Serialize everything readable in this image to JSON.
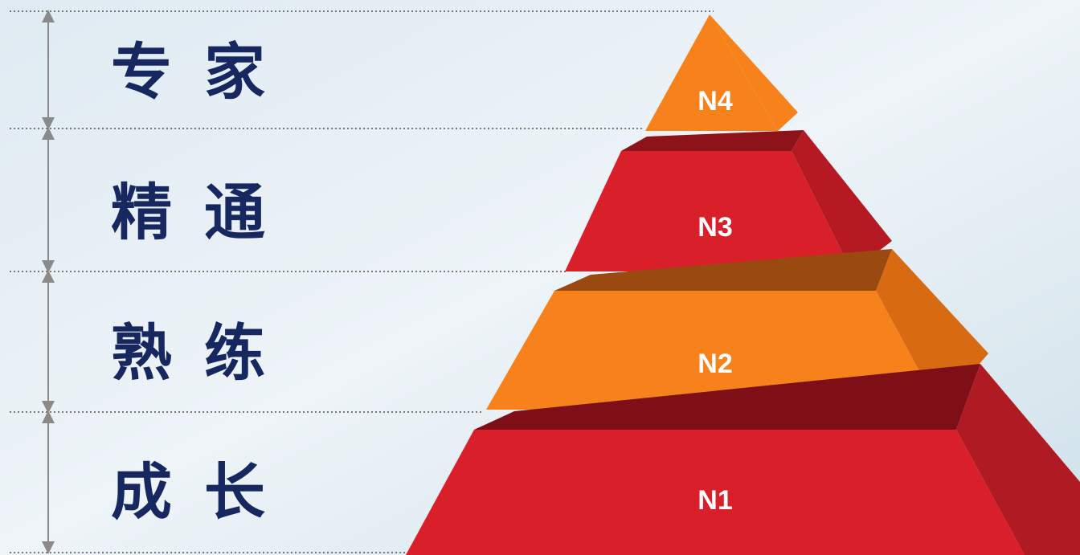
{
  "levels": [
    {
      "label": "专家",
      "tier": "N4"
    },
    {
      "label": "精通",
      "tier": "N3"
    },
    {
      "label": "熟练",
      "tier": "N2"
    },
    {
      "label": "成长",
      "tier": "N1"
    }
  ]
}
